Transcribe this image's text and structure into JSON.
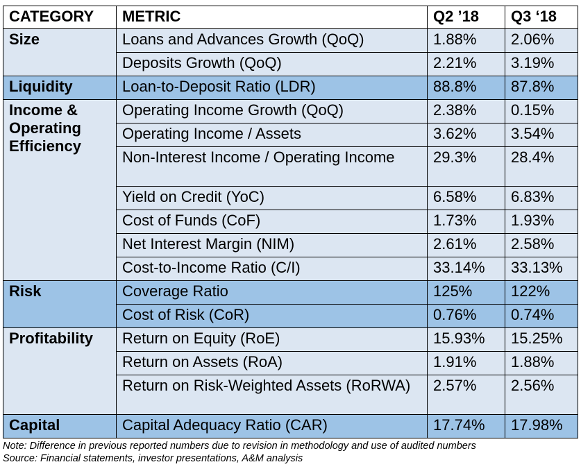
{
  "headers": {
    "category": "CATEGORY",
    "metric": "METRIC",
    "q2": "Q2 ’18",
    "q3": "Q3 ‘18"
  },
  "groups": [
    {
      "category": "Size",
      "rows": [
        {
          "metric": "Loans and Advances Growth (QoQ)",
          "q2": "1.88%",
          "q3": "2.06%"
        },
        {
          "metric": "Deposits Growth (QoQ)",
          "q2": "2.21%",
          "q3": "3.19%"
        }
      ]
    },
    {
      "category": "Liquidity",
      "rows": [
        {
          "metric": "Loan-to-Deposit Ratio (LDR)",
          "q2": "88.8%",
          "q3": "87.8%"
        }
      ]
    },
    {
      "category": "Income & Operating Efficiency",
      "rows": [
        {
          "metric": "Operating Income Growth (QoQ)",
          "q2": "2.38%",
          "q3": "0.15%"
        },
        {
          "metric": "Operating Income / Assets",
          "q2": "3.62%",
          "q3": "3.54%"
        },
        {
          "metric": "Non-Interest Income / Operating Income",
          "q2": "29.3%",
          "q3": "28.4%"
        },
        {
          "metric": "Yield on Credit (YoC)",
          "q2": "6.58%",
          "q3": "6.83%"
        },
        {
          "metric": "Cost of Funds (CoF)",
          "q2": "1.73%",
          "q3": "1.93%"
        },
        {
          "metric": "Net Interest Margin (NIM)",
          "q2": "2.61%",
          "q3": "2.58%"
        },
        {
          "metric": "Cost-to-Income Ratio (C/I)",
          "q2": "33.14%",
          "q3": "33.13%"
        }
      ]
    },
    {
      "category": "Risk",
      "rows": [
        {
          "metric": "Coverage Ratio",
          "q2": "125%",
          "q3": "122%"
        },
        {
          "metric": "Cost of Risk (CoR)",
          "q2": "0.76%",
          "q3": "0.74%"
        }
      ]
    },
    {
      "category": "Profitability",
      "rows": [
        {
          "metric": "Return on Equity (RoE)",
          "q2": "15.93%",
          "q3": "15.25%"
        },
        {
          "metric": "Return on Assets (RoA)",
          "q2": "1.91%",
          "q3": "1.88%"
        },
        {
          "metric": "Return on Risk-Weighted Assets (RoRWA)",
          "q2": "2.57%",
          "q3": "2.56%"
        }
      ]
    },
    {
      "category": "Capital",
      "rows": [
        {
          "metric": "Capital Adequacy Ratio (CAR)",
          "q2": "17.74%",
          "q3": "17.98%"
        }
      ]
    }
  ],
  "notes": {
    "note": "Note: Difference in previous reported numbers due to revision in methodology and use of audited numbers",
    "source": "Source: Financial statements, investor presentations, A&M analysis"
  }
}
